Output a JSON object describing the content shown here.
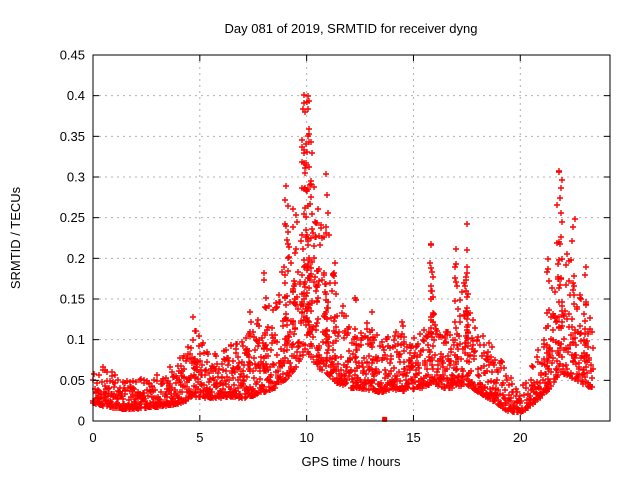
{
  "figure": {
    "title": "Day 081 of 2019, SRMTID for receiver dyng",
    "xlabel": "GPS time / hours",
    "ylabel": "SRMTID / TECUs"
  },
  "chart_data": {
    "type": "scatter",
    "title": "Day 081 of 2019, SRMTID for receiver dyng",
    "xlabel": "GPS time / hours",
    "ylabel": "SRMTID / TECUs",
    "xlim": [
      0,
      24.2
    ],
    "ylim": [
      0,
      0.45
    ],
    "xticks": [
      {
        "v": 0,
        "label": "0"
      },
      {
        "v": 5,
        "label": "5"
      },
      {
        "v": 10,
        "label": "10"
      },
      {
        "v": 15,
        "label": "15"
      },
      {
        "v": 20,
        "label": "20"
      }
    ],
    "yticks": [
      {
        "v": 0,
        "label": "0"
      },
      {
        "v": 0.05,
        "label": "0.05"
      },
      {
        "v": 0.1,
        "label": "0.1"
      },
      {
        "v": 0.15,
        "label": "0.15"
      },
      {
        "v": 0.2,
        "label": "0.2"
      },
      {
        "v": 0.25,
        "label": "0.25"
      },
      {
        "v": 0.3,
        "label": "0.3"
      },
      {
        "v": 0.35,
        "label": "0.35"
      },
      {
        "v": 0.4,
        "label": "0.4"
      },
      {
        "v": 0.45,
        "label": "0.45"
      }
    ],
    "grid": "dashed",
    "grid_color": "#b0b0b0",
    "border_color": "#000000",
    "marker": "plus",
    "marker_color": "#ff0000",
    "seed": 81,
    "x_start": 0.0,
    "x_end": 23.4,
    "sample_step_hours": 0.012,
    "band_envelope": [
      [
        0.0,
        0.022,
        0.062,
        1
      ],
      [
        0.6,
        0.018,
        0.068,
        1
      ],
      [
        1.2,
        0.015,
        0.052,
        1
      ],
      [
        2.0,
        0.015,
        0.05,
        1
      ],
      [
        2.6,
        0.016,
        0.058,
        1
      ],
      [
        3.2,
        0.018,
        0.058,
        1
      ],
      [
        3.8,
        0.02,
        0.07,
        1
      ],
      [
        4.4,
        0.025,
        0.09,
        1
      ],
      [
        4.8,
        0.03,
        0.115,
        1
      ],
      [
        5.2,
        0.028,
        0.095,
        1
      ],
      [
        5.8,
        0.028,
        0.088,
        1
      ],
      [
        6.4,
        0.03,
        0.095,
        1
      ],
      [
        7.0,
        0.028,
        0.105,
        1
      ],
      [
        7.6,
        0.032,
        0.115,
        1
      ],
      [
        8.0,
        0.035,
        0.15,
        1
      ],
      [
        8.5,
        0.04,
        0.14,
        1
      ],
      [
        9.0,
        0.05,
        0.2,
        1
      ],
      [
        9.5,
        0.065,
        0.29,
        1
      ],
      [
        9.9,
        0.085,
        0.39,
        1
      ],
      [
        10.2,
        0.08,
        0.33,
        1
      ],
      [
        10.5,
        0.065,
        0.25,
        1
      ],
      [
        10.9,
        0.06,
        0.28,
        1
      ],
      [
        11.2,
        0.05,
        0.19,
        1
      ],
      [
        11.6,
        0.045,
        0.15,
        1
      ],
      [
        12.0,
        0.04,
        0.125,
        1
      ],
      [
        12.5,
        0.04,
        0.135,
        1
      ],
      [
        13.0,
        0.038,
        0.12,
        1
      ],
      [
        13.5,
        0.035,
        0.1,
        1
      ],
      [
        14.0,
        0.038,
        0.11,
        1
      ],
      [
        14.6,
        0.04,
        0.115,
        1
      ],
      [
        15.1,
        0.038,
        0.1,
        1
      ],
      [
        15.6,
        0.042,
        0.13,
        1
      ],
      [
        15.9,
        0.048,
        0.19,
        1
      ],
      [
        16.2,
        0.042,
        0.12,
        1
      ],
      [
        16.7,
        0.04,
        0.11,
        1
      ],
      [
        17.1,
        0.042,
        0.14,
        1
      ],
      [
        17.5,
        0.045,
        0.19,
        1
      ],
      [
        17.9,
        0.038,
        0.115,
        1
      ],
      [
        18.4,
        0.03,
        0.1,
        1
      ],
      [
        18.9,
        0.022,
        0.085,
        1
      ],
      [
        19.4,
        0.012,
        0.06,
        0.7
      ],
      [
        19.9,
        0.01,
        0.048,
        0.6
      ],
      [
        20.3,
        0.014,
        0.055,
        0.8
      ],
      [
        20.7,
        0.024,
        0.08,
        1
      ],
      [
        21.1,
        0.032,
        0.12,
        1
      ],
      [
        21.5,
        0.045,
        0.18,
        1
      ],
      [
        21.9,
        0.06,
        0.26,
        1
      ],
      [
        22.2,
        0.055,
        0.22,
        1
      ],
      [
        22.6,
        0.05,
        0.17,
        1
      ],
      [
        23.0,
        0.045,
        0.165,
        1
      ],
      [
        23.4,
        0.04,
        0.11,
        1
      ]
    ],
    "spikes": [
      [
        4.75,
        0.06,
        0.128,
        8
      ],
      [
        7.35,
        0.05,
        0.135,
        7
      ],
      [
        8.05,
        0.06,
        0.183,
        10
      ],
      [
        9.05,
        0.09,
        0.29,
        20
      ],
      [
        9.4,
        0.07,
        0.262,
        14
      ],
      [
        9.95,
        0.17,
        0.402,
        55
      ],
      [
        10.15,
        0.1,
        0.355,
        25
      ],
      [
        10.5,
        0.08,
        0.262,
        16
      ],
      [
        10.95,
        0.07,
        0.305,
        20
      ],
      [
        11.3,
        0.07,
        0.195,
        12
      ],
      [
        12.3,
        0.06,
        0.152,
        8
      ],
      [
        13.1,
        0.06,
        0.135,
        7
      ],
      [
        14.5,
        0.06,
        0.122,
        7
      ],
      [
        15.85,
        0.07,
        0.218,
        20
      ],
      [
        17.0,
        0.06,
        0.212,
        11
      ],
      [
        17.5,
        0.08,
        0.243,
        22
      ],
      [
        21.3,
        0.07,
        0.2,
        12
      ],
      [
        21.85,
        0.12,
        0.308,
        26
      ],
      [
        22.5,
        0.07,
        0.25,
        10
      ],
      [
        23.05,
        0.08,
        0.19,
        12
      ]
    ],
    "outliers": [
      {
        "x": 13.65,
        "y": 0.002,
        "marker": "filled-square"
      }
    ]
  }
}
